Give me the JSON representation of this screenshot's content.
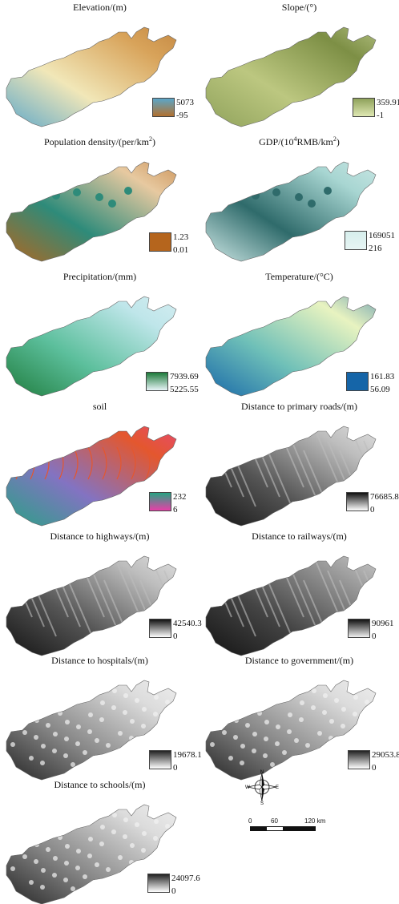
{
  "panels": [
    {
      "id": "elevation",
      "title_html": "Elevation/(m)",
      "legend": {
        "max": "5073",
        "min": "-95"
      },
      "colors": [
        "#5aa6c9",
        "#f1e7b8",
        "#d8a35a",
        "#b2702e"
      ]
    },
    {
      "id": "slope",
      "title_html": "Slope/(°)",
      "legend": {
        "max": "359.91",
        "min": "-1"
      },
      "colors": [
        "#8ea15a",
        "#bcc780",
        "#7d8f45",
        "#dfe8b3"
      ]
    },
    {
      "id": "population",
      "title_html": "Population density/(per/km<sup>2</sup>)",
      "legend": {
        "max": "1.23",
        "min": "0.01"
      },
      "colors": [
        "#b5651d",
        "#2e8b7a",
        "#e7c9a0",
        "#b5651d"
      ]
    },
    {
      "id": "gdp",
      "title_html": "GDP/(10<sup>4</sup>RMB/km<sup>2</sup>)",
      "legend": {
        "max": "169051",
        "min": "216"
      },
      "colors": [
        "#d6eeec",
        "#2f6b6b",
        "#a8d6d2",
        "#e7f5f4"
      ]
    },
    {
      "id": "precipitation",
      "title_html": "Precipitation/(mm)",
      "legend": {
        "max": "7939.69",
        "min": "5225.55"
      },
      "colors": [
        "#1d7a3a",
        "#5cbf9c",
        "#bfe6ea",
        "#e8f4f8"
      ]
    },
    {
      "id": "temperature",
      "title_html": "Temperature/(°C)",
      "legend": {
        "max": "161.83",
        "min": "56.09"
      },
      "colors": [
        "#1565a8",
        "#6fc0b8",
        "#e8f3c0",
        "#1565a8"
      ]
    },
    {
      "id": "soil",
      "title_html": "soil",
      "legend": {
        "max": "232",
        "min": "6"
      },
      "colors": [
        "#26a382",
        "#8373c2",
        "#e4572e",
        "#e83fa8"
      ]
    },
    {
      "id": "primary_roads",
      "title_html": "Distance to primary roads/(m)",
      "legend": {
        "max": "76685.8",
        "min": "0"
      },
      "colors": [
        "#111111",
        "#555555",
        "#bdbdbd",
        "#ffffff"
      ]
    },
    {
      "id": "highways",
      "title_html": "Distance to highways/(m)",
      "legend": {
        "max": "42540.3",
        "min": "0"
      },
      "colors": [
        "#111111",
        "#555555",
        "#bdbdbd",
        "#ffffff"
      ]
    },
    {
      "id": "railways",
      "title_html": "Distance to railways/(m)",
      "legend": {
        "max": "90961",
        "min": "0"
      },
      "colors": [
        "#111111",
        "#444444",
        "#9a9a9a",
        "#f0f0f0"
      ]
    },
    {
      "id": "hospitals",
      "title_html": "Distance to hospitals/(m)",
      "legend": {
        "max": "19678.1",
        "min": "0"
      },
      "colors": [
        "#222222",
        "#888888",
        "#dcdcdc",
        "#ffffff"
      ]
    },
    {
      "id": "government",
      "title_html": "Distance to government/(m)",
      "legend": {
        "max": "29053.8",
        "min": "0"
      },
      "colors": [
        "#222222",
        "#888888",
        "#dcdcdc",
        "#ffffff"
      ]
    },
    {
      "id": "schools",
      "title_html": "Distance to schools/(m)",
      "legend": {
        "max": "24097.6",
        "min": "0"
      },
      "colors": [
        "#222222",
        "#888888",
        "#dcdcdc",
        "#ffffff"
      ]
    }
  ],
  "compass": {
    "n": "N",
    "s": "S",
    "e": "E",
    "w": "W"
  },
  "scale": {
    "ticks": [
      "0",
      "60",
      "120 km"
    ]
  }
}
